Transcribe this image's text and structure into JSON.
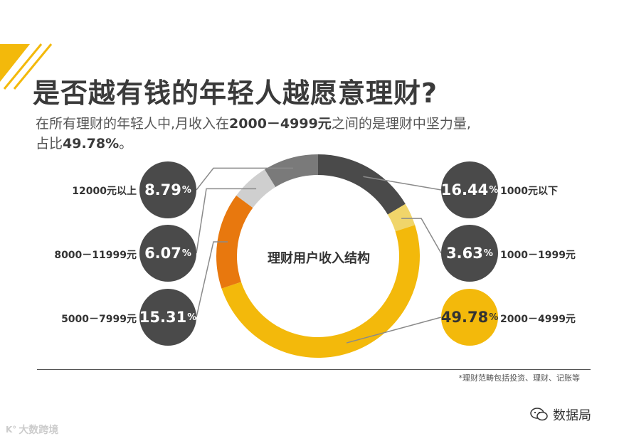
{
  "header": {
    "title": "是否越有钱的年轻人越愿意理财?",
    "subtitle_pre": "在所有理财的年轻人中,月收入在",
    "subtitle_range": "2000－4999元",
    "subtitle_mid": "之间的是理财中坚力量,",
    "subtitle_line2_pre": "占比",
    "subtitle_pct": "49.78%",
    "subtitle_end": "。"
  },
  "chart_data": {
    "type": "pie",
    "title": "理财用户收入结构",
    "categories": [
      "1000元以下",
      "1000－1999元",
      "2000－4999元",
      "5000－7999元",
      "8000－11999元",
      "12000元以上"
    ],
    "values": [
      16.44,
      3.63,
      49.78,
      15.31,
      6.07,
      8.79
    ],
    "colors": [
      "#4a4a4a",
      "#f0d56a",
      "#f3b90b",
      "#e8780e",
      "#cfcfcf",
      "#7a7a7a"
    ],
    "highlight": "2000－4999元"
  },
  "bubbles": [
    {
      "value": "16.44",
      "unit": "%",
      "label": "1000元以下"
    },
    {
      "value": "3.63",
      "unit": "%",
      "label": "1000－1999元"
    },
    {
      "value": "49.78",
      "unit": "%",
      "label": "2000－4999元"
    },
    {
      "value": "15.31",
      "unit": "%",
      "label": "5000－7999元"
    },
    {
      "value": "6.07",
      "unit": "%",
      "label": "8000－11999元"
    },
    {
      "value": "8.79",
      "unit": "%",
      "label": "12000元以上"
    }
  ],
  "footnote": "*理财范畴包括投资、理财、记账等",
  "watermark_left": "大数跨境",
  "watermark_right": "数据局"
}
